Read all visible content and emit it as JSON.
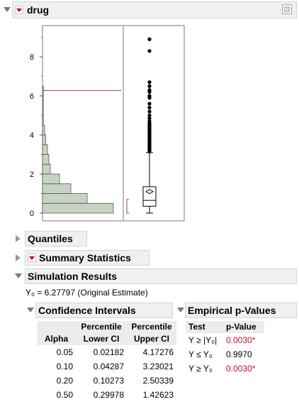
{
  "drug": {
    "title": "drug"
  },
  "chart_data": {
    "type": "histogram",
    "y_axis_ticks": [
      "0",
      "2",
      "4",
      "6",
      "8"
    ],
    "ylim": [
      -0.4,
      9.6
    ],
    "histogram": {
      "bins": [
        {
          "from": 0.0,
          "to": 0.5,
          "relative_height": 1.0
        },
        {
          "from": 0.5,
          "to": 1.0,
          "relative_height": 0.63
        },
        {
          "from": 1.0,
          "to": 1.5,
          "relative_height": 0.4
        },
        {
          "from": 1.5,
          "to": 2.0,
          "relative_height": 0.24
        },
        {
          "from": 2.0,
          "to": 2.5,
          "relative_height": 0.11
        },
        {
          "from": 2.5,
          "to": 3.0,
          "relative_height": 0.09
        },
        {
          "from": 3.0,
          "to": 3.5,
          "relative_height": 0.07
        },
        {
          "from": 3.5,
          "to": 4.0,
          "relative_height": 0.045
        },
        {
          "from": 4.0,
          "to": 4.5,
          "relative_height": 0.03
        },
        {
          "from": 4.5,
          "to": 6.5,
          "relative_height": 0.012
        }
      ],
      "reference_line": 6.27797
    },
    "boxplot": {
      "whisker_low": 0.0,
      "q1": 0.35,
      "median": 0.65,
      "mean": 1.1,
      "q3": 1.35,
      "whisker_high": 3.1,
      "shortest_half": [
        0.0,
        0.7
      ],
      "outliers": [
        3.15,
        3.2,
        3.25,
        3.3,
        3.35,
        3.4,
        3.45,
        3.5,
        3.55,
        3.6,
        3.65,
        3.7,
        3.75,
        3.8,
        3.85,
        3.9,
        3.95,
        4.0,
        4.05,
        4.1,
        4.15,
        4.2,
        4.25,
        4.3,
        4.35,
        4.4,
        4.45,
        4.5,
        4.55,
        4.6,
        4.7,
        4.85,
        5.0,
        5.2,
        5.4,
        5.6,
        5.9,
        6.0,
        6.2,
        6.3,
        6.5,
        6.7,
        8.3,
        8.9
      ]
    }
  },
  "quantiles": {
    "title": "Quantiles"
  },
  "summary": {
    "title": "Summary Statistics"
  },
  "simulation": {
    "title": "Simulation Results",
    "y0_label": "Y₀ = 6.27797 (Original Estimate)"
  },
  "ci": {
    "title": "Confidence Intervals",
    "headers": {
      "alpha": "Alpha",
      "lower_1": "Percentile",
      "lower_2": "Lower CI",
      "upper_1": "Percentile",
      "upper_2": "Upper CI"
    },
    "rows": [
      {
        "alpha": "0.05",
        "lower": "0.02182",
        "upper": "4.17276"
      },
      {
        "alpha": "0.10",
        "lower": "0.04287",
        "upper": "3.23021"
      },
      {
        "alpha": "0.20",
        "lower": "0.10273",
        "upper": "2.50339"
      },
      {
        "alpha": "0.50",
        "lower": "0.29978",
        "upper": "1.42623"
      }
    ]
  },
  "pv": {
    "title": "Empirical p-Values",
    "headers": {
      "test": "Test",
      "pvalue": "p-Value"
    },
    "rows": [
      {
        "test": "Y ≥ |Y₀|",
        "value": "0.0030*",
        "highlight": true
      },
      {
        "test": "Y ≤ Y₀",
        "value": "0.9970",
        "highlight": false
      },
      {
        "test": "Y ≥ Y₀",
        "value": "0.0030*",
        "highlight": true
      }
    ]
  },
  "colors": {
    "histogram_fill": "#c8d4c3",
    "reference_line": "#b03a4a",
    "outlier_dot": "#000000",
    "highlight_text": "#c8102e"
  }
}
